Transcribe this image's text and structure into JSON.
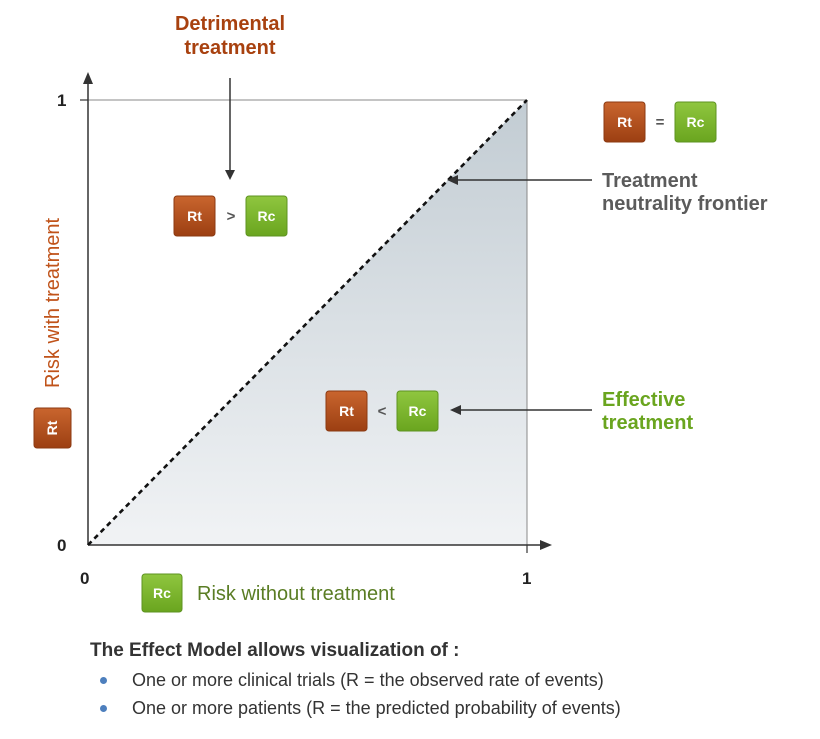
{
  "colors": {
    "rt_box": "#b2501e",
    "rc_box": "#7ab52b",
    "detrimental_text": "#a8410f",
    "effective_text": "#6aa51f",
    "frontier_text": "#5b5b5b",
    "y_axis_label": "#c0531a",
    "x_axis_label": "#5a7d24",
    "bullet": "#4d7fbd"
  },
  "axes": {
    "y_label": "Risk with treatment",
    "x_label": "Risk without treatment",
    "y_ticks": [
      "1",
      "0"
    ],
    "x_ticks": [
      "0",
      "1"
    ]
  },
  "symbols": {
    "rt": "Rt",
    "rc": "Rc",
    "gt": ">",
    "lt": "<",
    "eq": "="
  },
  "labels": {
    "detrimental": [
      "Detrimental",
      "treatment"
    ],
    "frontier": [
      "Treatment",
      "neutrality frontier"
    ],
    "effective": [
      "Effective",
      "treatment"
    ]
  },
  "note": {
    "title": "The Effect Model allows visualization of :",
    "items": [
      "One or more clinical trials (R = the observed rate of events)",
      "One or more patients (R = the predicted probability of events)"
    ]
  }
}
